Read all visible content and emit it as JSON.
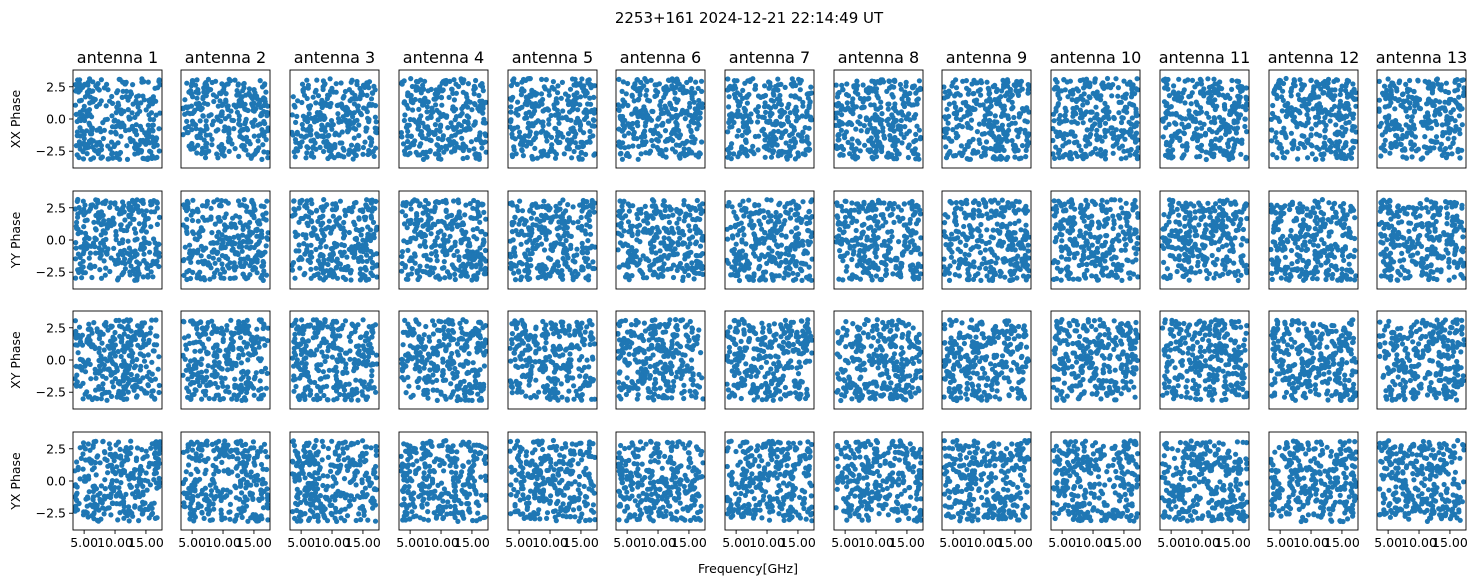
{
  "chart_data": {
    "type": "scatter",
    "title": "2253+161 2024-12-21 22:14:49 UT",
    "xlabel": "Frequency[GHz]",
    "xlim": [
      3.2,
      17.6
    ],
    "ylim": [
      -3.8,
      3.8
    ],
    "xticks": [
      5,
      10,
      15
    ],
    "xtick_labels": [
      "5.00",
      "10.00",
      "15.00"
    ],
    "yticks": [
      2.5,
      0,
      -2.5
    ],
    "ytick_labels": [
      "2.5",
      "0.0",
      "−2.5"
    ],
    "columns": [
      "antenna 1",
      "antenna 2",
      "antenna 3",
      "antenna 4",
      "antenna 5",
      "antenna 6",
      "antenna 7",
      "antenna 8",
      "antenna 9",
      "antenna 10",
      "antenna 11",
      "antenna 12",
      "antenna 13"
    ],
    "rows": [
      "XX Phase",
      "YY Phase",
      "XY Phase",
      "YX Phase"
    ],
    "x_range": [
      3.5,
      17.3
    ],
    "y_range": [
      -3.14,
      3.14
    ],
    "points_per_panel": 300,
    "marker_color": "#1f77b4",
    "distribution": "uniform random phase noise in every panel"
  }
}
